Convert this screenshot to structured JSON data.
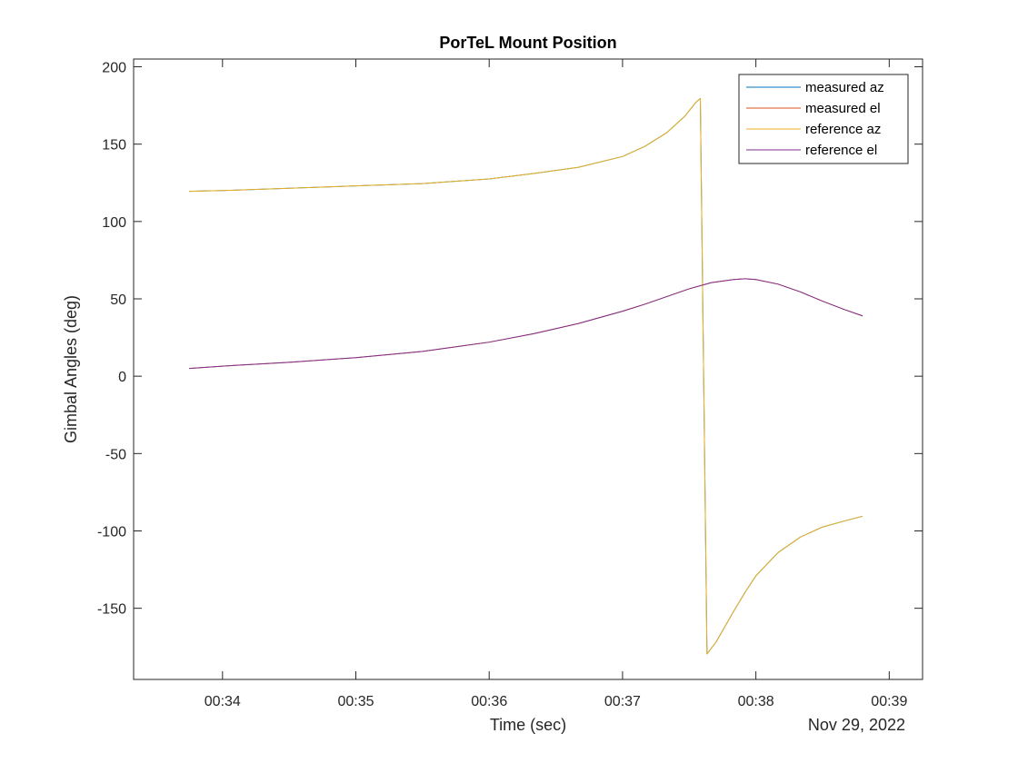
{
  "chart_data": {
    "type": "line",
    "title": "PorTeL Mount Position",
    "xlabel": "Time (sec)",
    "ylabel": "Gimbal Angles (deg)",
    "date_label": "Nov 29, 2022",
    "xlim": [
      "00:33:20",
      "00:39:15"
    ],
    "ylim": [
      -196,
      205
    ],
    "x_ticks": [
      "00:34",
      "00:35",
      "00:36",
      "00:37",
      "00:38",
      "00:39"
    ],
    "y_ticks": [
      200,
      150,
      100,
      50,
      0,
      -50,
      -100,
      -150
    ],
    "grid": false,
    "legend_position": "top-right",
    "series": [
      {
        "name": "measured az",
        "color": "#0072BD",
        "x": [
          "00:33:45",
          "00:34:00",
          "00:34:30",
          "00:35:00",
          "00:35:30",
          "00:36:00",
          "00:36:20",
          "00:36:40",
          "00:37:00",
          "00:37:10",
          "00:37:20",
          "00:37:28",
          "00:37:33",
          "00:37:35",
          "00:37:38",
          "00:37:42",
          "00:37:46",
          "00:37:50",
          "00:37:55",
          "00:38:00",
          "00:38:10",
          "00:38:20",
          "00:38:30",
          "00:38:40",
          "00:38:48"
        ],
        "y": [
          119.5,
          120.0,
          121.5,
          123.0,
          124.5,
          127.5,
          131.0,
          135.0,
          142.0,
          148.5,
          157.5,
          168.0,
          177.0,
          179.5,
          -179.5,
          -172.0,
          -162.0,
          -152.0,
          -140.0,
          -129.0,
          -114.0,
          -104.0,
          -97.5,
          -93.5,
          -90.5
        ]
      },
      {
        "name": "measured el",
        "color": "#D95319",
        "x": [
          "00:33:45",
          "00:34:00",
          "00:34:30",
          "00:35:00",
          "00:35:30",
          "00:36:00",
          "00:36:20",
          "00:36:40",
          "00:37:00",
          "00:37:10",
          "00:37:20",
          "00:37:30",
          "00:37:40",
          "00:37:50",
          "00:37:55",
          "00:38:00",
          "00:38:10",
          "00:38:20",
          "00:38:30",
          "00:38:40",
          "00:38:48"
        ],
        "y": [
          5.0,
          6.5,
          9.0,
          12.0,
          16.0,
          22.0,
          27.5,
          34.0,
          42.0,
          46.5,
          51.5,
          56.5,
          60.5,
          62.5,
          63.0,
          62.5,
          59.5,
          54.5,
          48.5,
          43.0,
          39.0
        ]
      },
      {
        "name": "reference az",
        "color": "#EDB120",
        "x": [
          "00:33:45",
          "00:34:00",
          "00:34:30",
          "00:35:00",
          "00:35:30",
          "00:36:00",
          "00:36:20",
          "00:36:40",
          "00:37:00",
          "00:37:10",
          "00:37:20",
          "00:37:28",
          "00:37:33",
          "00:37:35",
          "00:37:38",
          "00:37:42",
          "00:37:46",
          "00:37:50",
          "00:37:55",
          "00:38:00",
          "00:38:10",
          "00:38:20",
          "00:38:30",
          "00:38:40",
          "00:38:48"
        ],
        "y": [
          119.5,
          120.0,
          121.5,
          123.0,
          124.5,
          127.5,
          131.0,
          135.0,
          142.0,
          148.5,
          157.5,
          168.0,
          177.0,
          179.5,
          -179.5,
          -172.0,
          -162.0,
          -152.0,
          -140.0,
          -129.0,
          -114.0,
          -104.0,
          -97.5,
          -93.5,
          -90.5
        ]
      },
      {
        "name": "reference el",
        "color": "#7E2F8E",
        "x": [
          "00:33:45",
          "00:34:00",
          "00:34:30",
          "00:35:00",
          "00:35:30",
          "00:36:00",
          "00:36:20",
          "00:36:40",
          "00:37:00",
          "00:37:10",
          "00:37:20",
          "00:37:30",
          "00:37:40",
          "00:37:50",
          "00:37:55",
          "00:38:00",
          "00:38:10",
          "00:38:20",
          "00:38:30",
          "00:38:40",
          "00:38:48"
        ],
        "y": [
          5.0,
          6.5,
          9.0,
          12.0,
          16.0,
          22.0,
          27.5,
          34.0,
          42.0,
          46.5,
          51.5,
          56.5,
          60.5,
          62.5,
          63.0,
          62.5,
          59.5,
          54.5,
          48.5,
          43.0,
          39.0
        ]
      }
    ]
  }
}
